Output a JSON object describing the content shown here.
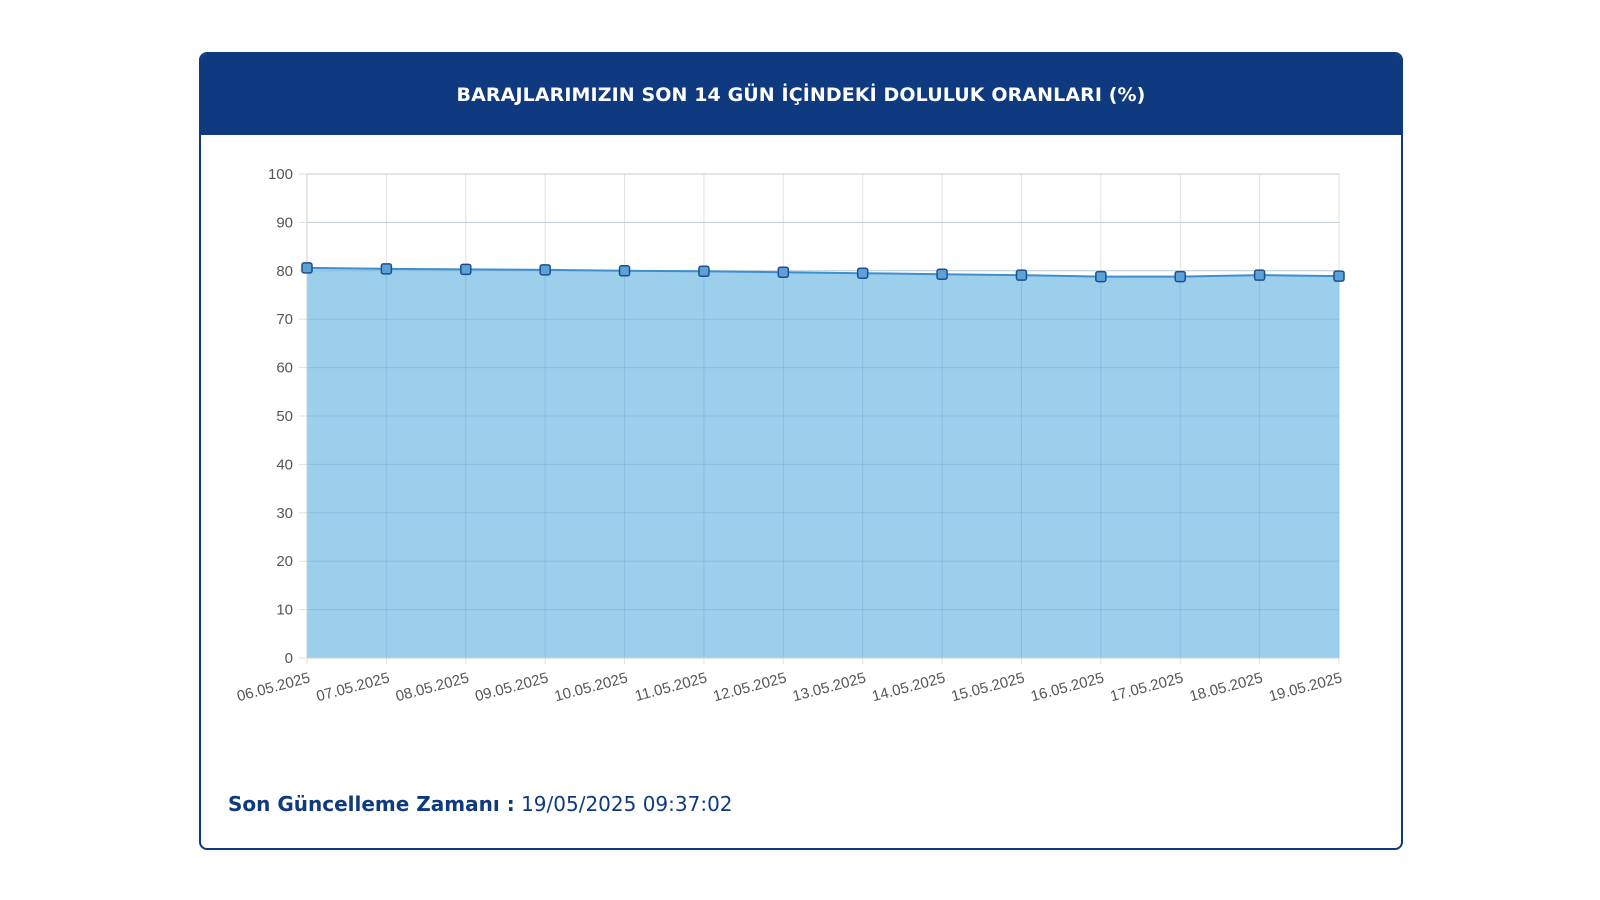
{
  "panel": {
    "title": "BARAJLARIMIZIN SON 14 GÜN İÇİNDEKİ DOLULUK ORANLARI (%)",
    "last_update_label": "Son Güncelleme Zamanı :",
    "last_update_value": "19/05/2025 09:37:02"
  },
  "colors": {
    "header_bg": "#0f3a80",
    "area_fill": "#9ccfec",
    "line": "#3d8fce",
    "point_fill": "#5da2d6",
    "point_stroke": "#1d4f8e"
  },
  "chart_data": {
    "type": "area",
    "categories": [
      "06.05.2025",
      "07.05.2025",
      "08.05.2025",
      "09.05.2025",
      "10.05.2025",
      "11.05.2025",
      "12.05.2025",
      "13.05.2025",
      "14.05.2025",
      "15.05.2025",
      "16.05.2025",
      "17.05.2025",
      "18.05.2025",
      "19.05.2025"
    ],
    "values": [
      80.6,
      80.4,
      80.3,
      80.2,
      80.0,
      79.9,
      79.7,
      79.5,
      79.3,
      79.1,
      78.8,
      78.8,
      79.1,
      78.9
    ],
    "ylim": [
      0,
      100
    ],
    "yticks": [
      0,
      10,
      20,
      30,
      40,
      50,
      60,
      70,
      80,
      90,
      100
    ],
    "grid": true,
    "legend": "none"
  }
}
